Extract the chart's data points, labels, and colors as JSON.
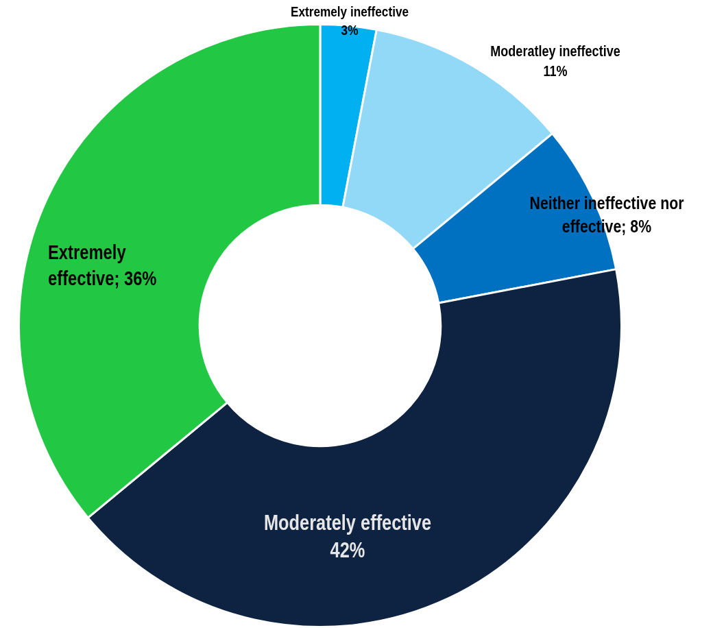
{
  "chart_data": {
    "type": "donut",
    "categories": [
      "Extremely ineffective",
      "Moderatley ineffective",
      "Neither ineffective nor effective",
      "Moderately effective",
      "Extremely effective"
    ],
    "values": [
      3,
      11,
      8,
      42,
      36
    ],
    "colors": [
      "#00b0f0",
      "#92d8f7",
      "#0070c0",
      "#0e2341",
      "#22c744"
    ],
    "value_labels": [
      "3%",
      "11%",
      "8%",
      "42%",
      "36%"
    ],
    "legend": false
  }
}
